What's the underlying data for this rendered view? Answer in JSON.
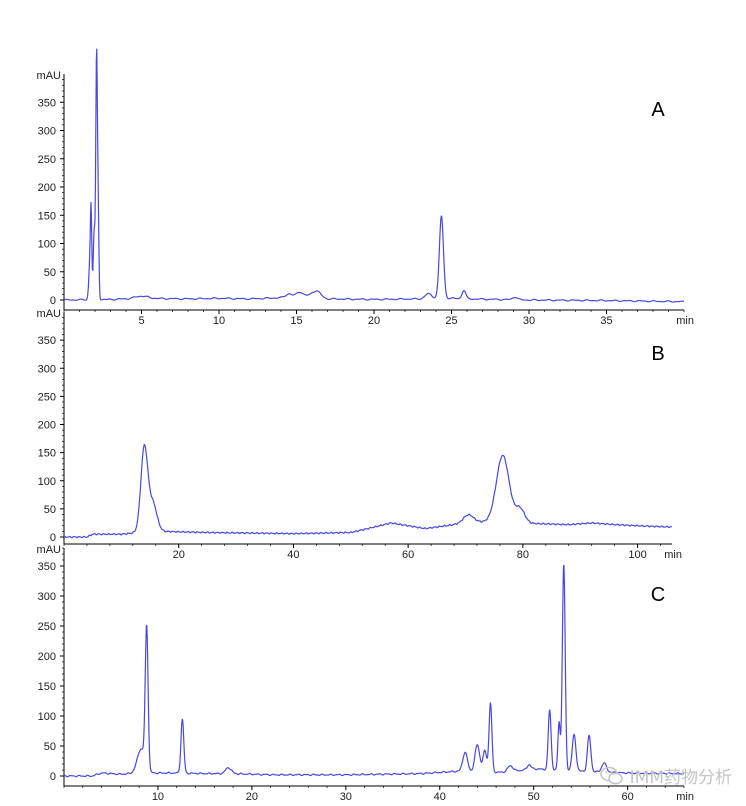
{
  "chart_data": [
    {
      "type": "line",
      "panel_label": "A",
      "ylabel": "mAU",
      "xlabel": "min",
      "xlim": [
        0,
        40
      ],
      "ylim": [
        -15,
        400
      ],
      "x_ticks": [
        5,
        10,
        15,
        20,
        25,
        30,
        35
      ],
      "y_ticks": [
        0,
        50,
        100,
        150,
        200,
        250,
        300,
        350
      ],
      "baseline": [
        [
          0,
          0
        ],
        [
          3,
          1
        ],
        [
          5,
          3
        ],
        [
          8,
          2
        ],
        [
          10,
          3
        ],
        [
          12,
          2
        ],
        [
          14,
          4
        ],
        [
          15,
          6
        ],
        [
          16,
          8
        ],
        [
          17,
          2
        ],
        [
          20,
          1
        ],
        [
          23,
          2
        ],
        [
          24,
          4
        ],
        [
          26,
          2
        ],
        [
          30,
          0
        ],
        [
          35,
          -1
        ],
        [
          40,
          -3
        ]
      ],
      "peaks": [
        {
          "x": 1.7,
          "height": 85,
          "width": 0.08
        },
        {
          "x": 1.75,
          "height": 100,
          "width": 0.04
        },
        {
          "x": 1.95,
          "height": 120,
          "width": 0.06
        },
        {
          "x": 2.1,
          "height": 420,
          "width": 0.05
        },
        {
          "x": 2.2,
          "height": 160,
          "width": 0.05
        },
        {
          "x": 5,
          "height": 4,
          "width": 0.4
        },
        {
          "x": 14.5,
          "height": 6,
          "width": 0.2
        },
        {
          "x": 15.2,
          "height": 8,
          "width": 0.2
        },
        {
          "x": 16.3,
          "height": 10,
          "width": 0.25
        },
        {
          "x": 23.5,
          "height": 8,
          "width": 0.2
        },
        {
          "x": 24.35,
          "height": 145,
          "width": 0.13
        },
        {
          "x": 25.8,
          "height": 15,
          "width": 0.12
        },
        {
          "x": 29.1,
          "height": 5,
          "width": 0.15
        }
      ]
    },
    {
      "type": "line",
      "panel_label": "B",
      "ylabel": "mAU",
      "xlabel": "min",
      "xlim": [
        0,
        106
      ],
      "ylim": [
        -10,
        400
      ],
      "x_ticks": [
        20,
        40,
        60,
        80,
        100
      ],
      "y_ticks": [
        0,
        50,
        100,
        150,
        200,
        250,
        300,
        350
      ],
      "baseline": [
        [
          0,
          0
        ],
        [
          4,
          0
        ],
        [
          5,
          5
        ],
        [
          10,
          5
        ],
        [
          13,
          8
        ],
        [
          17,
          10
        ],
        [
          25,
          8
        ],
        [
          40,
          6
        ],
        [
          50,
          8
        ],
        [
          53,
          15
        ],
        [
          57,
          25
        ],
        [
          60,
          20
        ],
        [
          63,
          15
        ],
        [
          68,
          22
        ],
        [
          72,
          26
        ],
        [
          75,
          28
        ],
        [
          82,
          24
        ],
        [
          88,
          22
        ],
        [
          92,
          25
        ],
        [
          96,
          22
        ],
        [
          100,
          20
        ],
        [
          105,
          18
        ]
      ],
      "peaks": [
        {
          "x": 14,
          "height": 150,
          "width": 0.6
        },
        {
          "x": 15.5,
          "height": 50,
          "width": 0.7
        },
        {
          "x": 70.5,
          "height": 15,
          "width": 0.9
        },
        {
          "x": 76.5,
          "height": 118,
          "width": 1.1
        },
        {
          "x": 79.5,
          "height": 25,
          "width": 0.8
        }
      ]
    },
    {
      "type": "line",
      "panel_label": "C",
      "ylabel": "mAU",
      "xlabel": "min",
      "xlim": [
        0,
        66
      ],
      "ylim": [
        -10,
        380
      ],
      "x_ticks": [
        10,
        20,
        30,
        40,
        50,
        60
      ],
      "y_ticks": [
        0,
        50,
        100,
        150,
        200,
        250,
        300,
        350
      ],
      "baseline": [
        [
          0,
          0
        ],
        [
          3,
          0
        ],
        [
          4,
          5
        ],
        [
          6,
          3
        ],
        [
          8,
          5
        ],
        [
          12,
          5
        ],
        [
          15,
          4
        ],
        [
          18,
          4
        ],
        [
          22,
          2
        ],
        [
          30,
          2
        ],
        [
          38,
          4
        ],
        [
          42,
          8
        ],
        [
          47,
          6
        ],
        [
          50,
          12
        ],
        [
          55,
          8
        ],
        [
          60,
          5
        ],
        [
          66,
          4
        ]
      ],
      "peaks": [
        {
          "x": 8.2,
          "height": 40,
          "width": 0.4
        },
        {
          "x": 8.8,
          "height": 235,
          "width": 0.15
        },
        {
          "x": 12.6,
          "height": 90,
          "width": 0.15
        },
        {
          "x": 17.5,
          "height": 10,
          "width": 0.3
        },
        {
          "x": 42.7,
          "height": 32,
          "width": 0.25
        },
        {
          "x": 44.0,
          "height": 45,
          "width": 0.25
        },
        {
          "x": 44.8,
          "height": 35,
          "width": 0.2
        },
        {
          "x": 45.4,
          "height": 115,
          "width": 0.15
        },
        {
          "x": 47.5,
          "height": 10,
          "width": 0.3
        },
        {
          "x": 49.5,
          "height": 8,
          "width": 0.2
        },
        {
          "x": 51.7,
          "height": 100,
          "width": 0.15
        },
        {
          "x": 52.7,
          "height": 80,
          "width": 0.12
        },
        {
          "x": 53.2,
          "height": 345,
          "width": 0.15
        },
        {
          "x": 54.3,
          "height": 60,
          "width": 0.2
        },
        {
          "x": 55.9,
          "height": 60,
          "width": 0.18
        },
        {
          "x": 57.5,
          "height": 15,
          "width": 0.25
        }
      ]
    }
  ],
  "colors": {
    "trace": "#4848e0",
    "axis": "#000000",
    "text": "#202020",
    "watermark": "#c4c4c4"
  },
  "watermark": {
    "icon": "wechat-icon",
    "text": "IMM药物分析"
  }
}
